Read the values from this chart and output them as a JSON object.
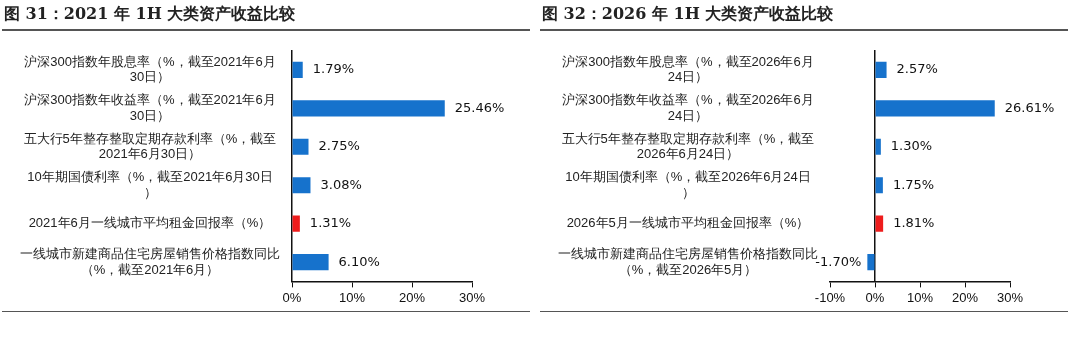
{
  "chart_data": [
    {
      "type": "bar",
      "orientation": "horizontal",
      "title": "图 31：2021 年 1H 大类资产收益比较",
      "categories": [
        "沪深300指数年股息率（%，截至2021年6月30日）",
        "沪深300指数年收益率（%，截至2021年6月30日）",
        "五大行5年整存整取定期存款利率（%，截至2021年6月30日）",
        "10年期国债利率（%，截至2021年6月30日）",
        "2021年6月一线城市平均租金回报率（%）",
        "一线城市新建商品住宅房屋销售价格指数同比（%，截至2021年6月）"
      ],
      "values": [
        1.79,
        25.46,
        2.75,
        3.08,
        1.31,
        6.1
      ],
      "colors": [
        "#1672cc",
        "#1672cc",
        "#1672cc",
        "#1672cc",
        "#ee1c1c",
        "#1672cc"
      ],
      "value_labels": [
        "1.79%",
        "25.46%",
        "2.75%",
        "3.08%",
        "1.31%",
        "6.10%"
      ],
      "xlim": [
        0,
        30
      ],
      "xticks": [
        {
          "value": 0,
          "label": "0%"
        },
        {
          "value": 10,
          "label": "10%"
        },
        {
          "value": 20,
          "label": "20%"
        },
        {
          "value": 30,
          "label": "30%"
        }
      ]
    },
    {
      "type": "bar",
      "orientation": "horizontal",
      "title": "图 32：2026 年 1H 大类资产收益比较",
      "categories": [
        "沪深300指数年股息率（%，截至2026年6月24日）",
        "沪深300指数年收益率（%，截至2026年6月24日）",
        "五大行5年整存整取定期存款利率（%，截至2026年6月24日）",
        "10年期国债利率（%，截至2026年6月24日）",
        "2026年5月一线城市平均租金回报率（%）",
        "一线城市新建商品住宅房屋销售价格指数同比（%，截至2026年5月）"
      ],
      "values": [
        2.57,
        26.61,
        1.3,
        1.75,
        1.81,
        -1.7
      ],
      "colors": [
        "#1672cc",
        "#1672cc",
        "#1672cc",
        "#1672cc",
        "#ee1c1c",
        "#1672cc"
      ],
      "value_labels": [
        "2.57%",
        "26.61%",
        "1.30%",
        "1.75%",
        "1.81%",
        "-1.70%"
      ],
      "xlim": [
        -10,
        30
      ],
      "xticks": [
        {
          "value": -10,
          "label": "-10%"
        },
        {
          "value": 0,
          "label": "0%"
        },
        {
          "value": 10,
          "label": "10%"
        },
        {
          "value": 20,
          "label": "20%"
        },
        {
          "value": 30,
          "label": "30%"
        }
      ]
    }
  ]
}
